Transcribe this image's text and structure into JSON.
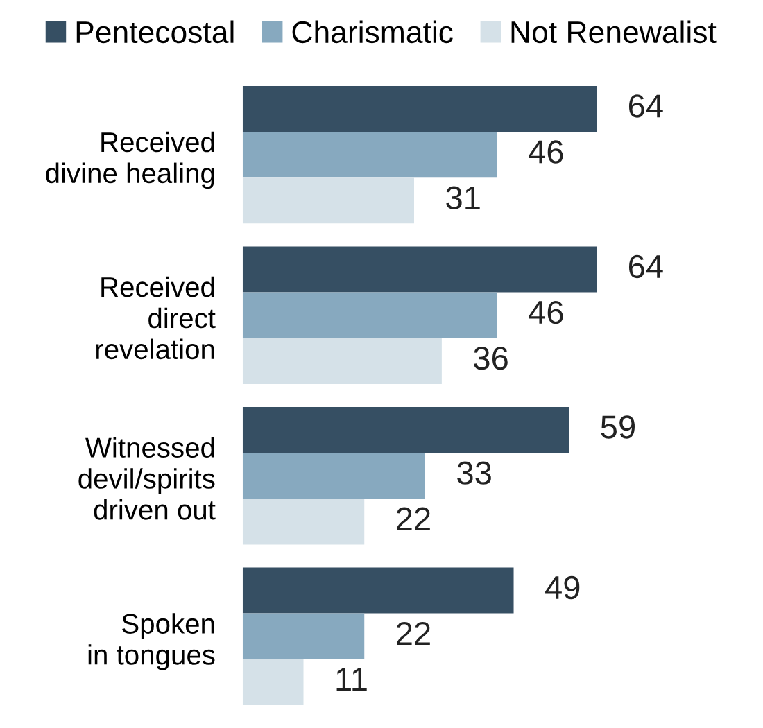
{
  "chart_data": {
    "type": "bar",
    "orientation": "horizontal",
    "data_labels": true,
    "legend": "top",
    "grid": false,
    "categories": [
      "Received\ndivine healing",
      "Received\ndirect\nrevelation",
      "Witnessed\ndevil/spirits\ndriven out",
      "Spoken\nin tongues"
    ],
    "series": [
      {
        "name": "Pentecostal",
        "color": "#364f63",
        "values": [
          64,
          64,
          59,
          49
        ]
      },
      {
        "name": "Charismatic",
        "color": "#87a9bf",
        "values": [
          46,
          46,
          33,
          22
        ]
      },
      {
        "name": "Not Renewalist",
        "color": "#d5e1e8",
        "values": [
          31,
          36,
          22,
          11
        ]
      }
    ]
  }
}
